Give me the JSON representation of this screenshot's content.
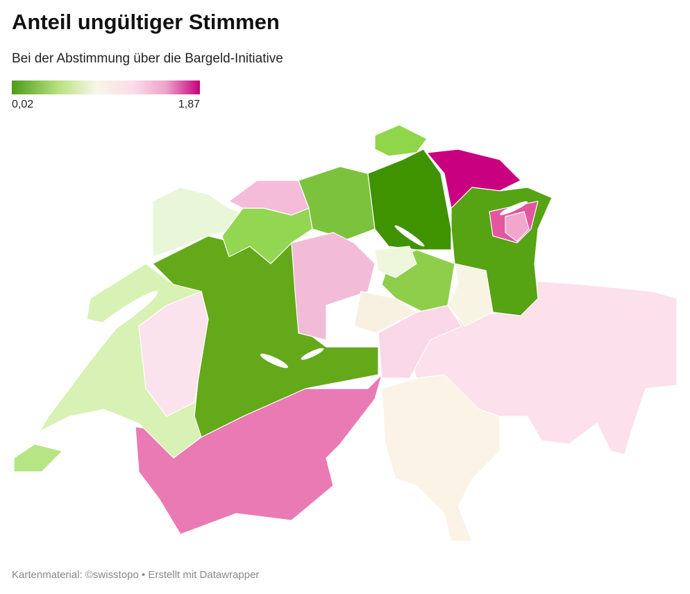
{
  "header": {
    "title": "Anteil ungültiger Stimmen",
    "subtitle": "Bei der Abstimmung über die Bargeld-Initiative"
  },
  "legend": {
    "labels": [
      {
        "value": 0.02,
        "label": "0,02"
      },
      {
        "value": 1.87,
        "label": "1,87"
      }
    ]
  },
  "footer": "Kartenmaterial: ©swisstopo • Erstellt mit Datawrapper"
}
